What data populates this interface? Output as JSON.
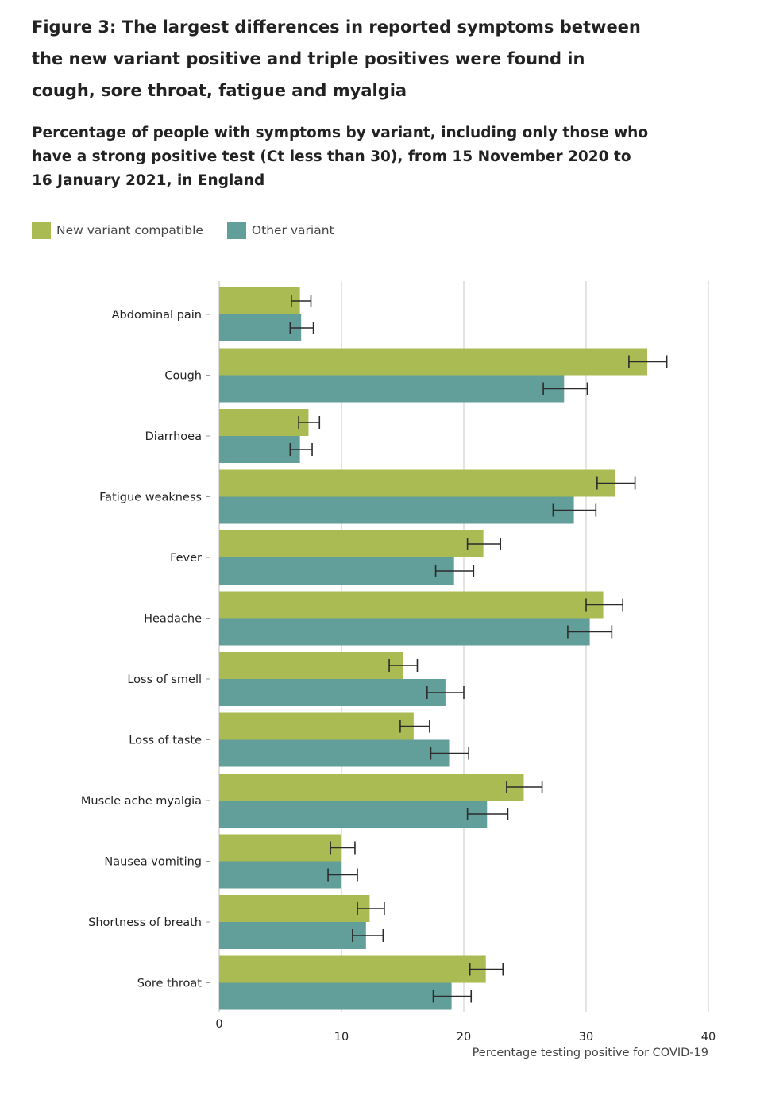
{
  "figure_title": "Figure 3: The largest differences in reported symptoms between the new variant positive and triple positives were found in cough, sore throat, fatigue and myalgia",
  "figure_subtitle": "Percentage of people with symptoms by variant, including only those who have a strong positive test (Ct less than 30), from 15 November 2020 to 16 January 2021, in England",
  "colors": {
    "new_variant": "#abbb53",
    "other_variant": "#629e9a",
    "grid": "#c8c8c8",
    "error_bar": "#2b2b2b"
  },
  "chart_data": {
    "type": "bar",
    "orientation": "horizontal",
    "title": "Percentage of people with symptoms by variant, including only those who have a strong positive test (Ct less than 30), from 15 November 2020 to 16 January 2021, in England",
    "xlabel": "Percentage testing positive for COVID-19",
    "ylabel": "",
    "xlim": [
      0,
      40
    ],
    "xticks": [
      0,
      10,
      20,
      30,
      40
    ],
    "grid": true,
    "legend_position": "top-left",
    "categories": [
      "Abdominal pain",
      "Cough",
      "Diarrhoea",
      "Fatigue weakness",
      "Fever",
      "Headache",
      "Loss of smell",
      "Loss of taste",
      "Muscle ache myalgia",
      "Nausea vomiting",
      "Shortness of breath",
      "Sore throat"
    ],
    "series": [
      {
        "name": "New variant compatible",
        "values": [
          6.6,
          35.0,
          7.3,
          32.4,
          21.6,
          31.4,
          15.0,
          15.9,
          24.9,
          10.0,
          12.3,
          21.8
        ],
        "ci_low": [
          5.9,
          33.5,
          6.5,
          30.9,
          20.3,
          30.0,
          13.9,
          14.8,
          23.5,
          9.1,
          11.3,
          20.5
        ],
        "ci_high": [
          7.5,
          36.6,
          8.2,
          34.0,
          23.0,
          33.0,
          16.2,
          17.2,
          26.4,
          11.1,
          13.5,
          23.2
        ]
      },
      {
        "name": "Other variant",
        "values": [
          6.7,
          28.2,
          6.6,
          29.0,
          19.2,
          30.3,
          18.5,
          18.8,
          21.9,
          10.0,
          12.0,
          19.0
        ],
        "ci_low": [
          5.8,
          26.5,
          5.8,
          27.3,
          17.7,
          28.5,
          17.0,
          17.3,
          20.3,
          8.9,
          10.9,
          17.5
        ],
        "ci_high": [
          7.7,
          30.1,
          7.6,
          30.8,
          20.8,
          32.1,
          20.0,
          20.4,
          23.6,
          11.3,
          13.4,
          20.6
        ]
      }
    ]
  }
}
